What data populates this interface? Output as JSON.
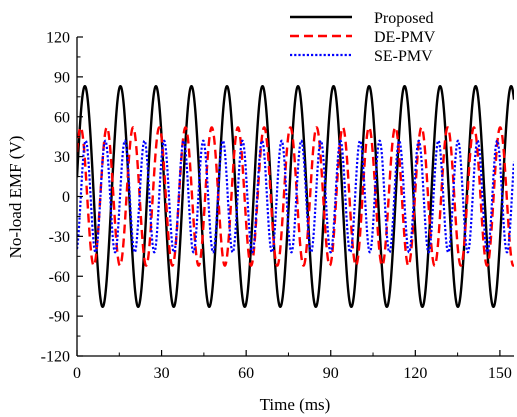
{
  "chart_data": {
    "type": "line",
    "title": "",
    "xlabel": "Time (ms)",
    "ylabel": "No-load EMF (V)",
    "xlim": [
      0,
      155
    ],
    "ylim": [
      -120,
      120
    ],
    "xticks": [
      0,
      30,
      60,
      90,
      120,
      150
    ],
    "yticks": [
      -120,
      -90,
      -60,
      -30,
      0,
      30,
      60,
      90,
      120
    ],
    "grid": false,
    "legend_position": "top-right",
    "series": [
      {
        "name": "Proposed",
        "color": "#000000",
        "style": "solid",
        "amplitude": 83,
        "period_ms": 12.6,
        "phase_deg": 10,
        "x_start": 0,
        "x_end": 155
      },
      {
        "name": "DE-PMV",
        "color": "#ff0000",
        "style": "dashed",
        "amplitude": 52,
        "period_ms": 9.3,
        "phase_deg": 40,
        "x_start": 0,
        "x_end": 155
      },
      {
        "name": "SE-PMV",
        "color": "#0000ff",
        "style": "dotted",
        "amplitude": 42,
        "period_ms": 6.95,
        "phase_deg": -70,
        "x_start": 0,
        "x_end": 155
      }
    ]
  }
}
